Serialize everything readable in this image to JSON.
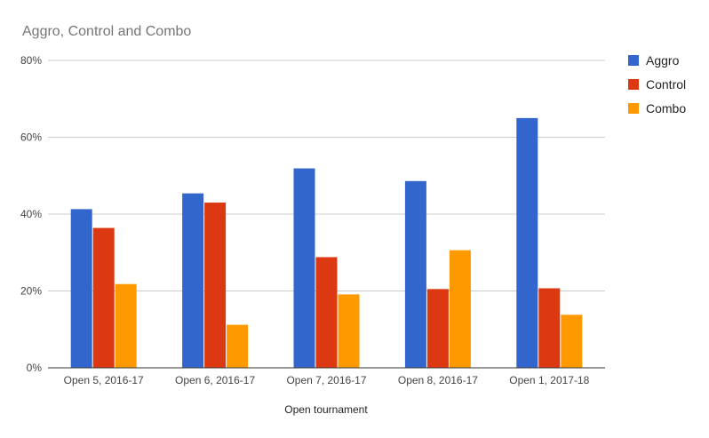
{
  "chart_data": {
    "type": "bar",
    "title": "Aggro, Control and Combo",
    "xlabel": "Open tournament",
    "ylabel": "",
    "ylim": [
      0,
      80
    ],
    "y_ticks": [
      "0%",
      "20%",
      "40%",
      "60%",
      "80%"
    ],
    "y_tick_values": [
      0,
      20,
      40,
      60,
      80
    ],
    "grid": true,
    "legend_position": "right",
    "categories": [
      "Open 5, 2016-17",
      "Open 6, 2016-17",
      "Open 7, 2016-17",
      "Open 8, 2016-17",
      "Open 1, 2017-18"
    ],
    "series": [
      {
        "name": "Aggro",
        "color": "#3366cc",
        "values": [
          41.3,
          45.4,
          51.9,
          48.6,
          65.0
        ]
      },
      {
        "name": "Control",
        "color": "#dc3912",
        "values": [
          36.4,
          43.0,
          28.8,
          20.5,
          20.7
        ]
      },
      {
        "name": "Combo",
        "color": "#ff9900",
        "values": [
          21.8,
          11.2,
          19.1,
          30.6,
          13.8
        ]
      }
    ]
  }
}
